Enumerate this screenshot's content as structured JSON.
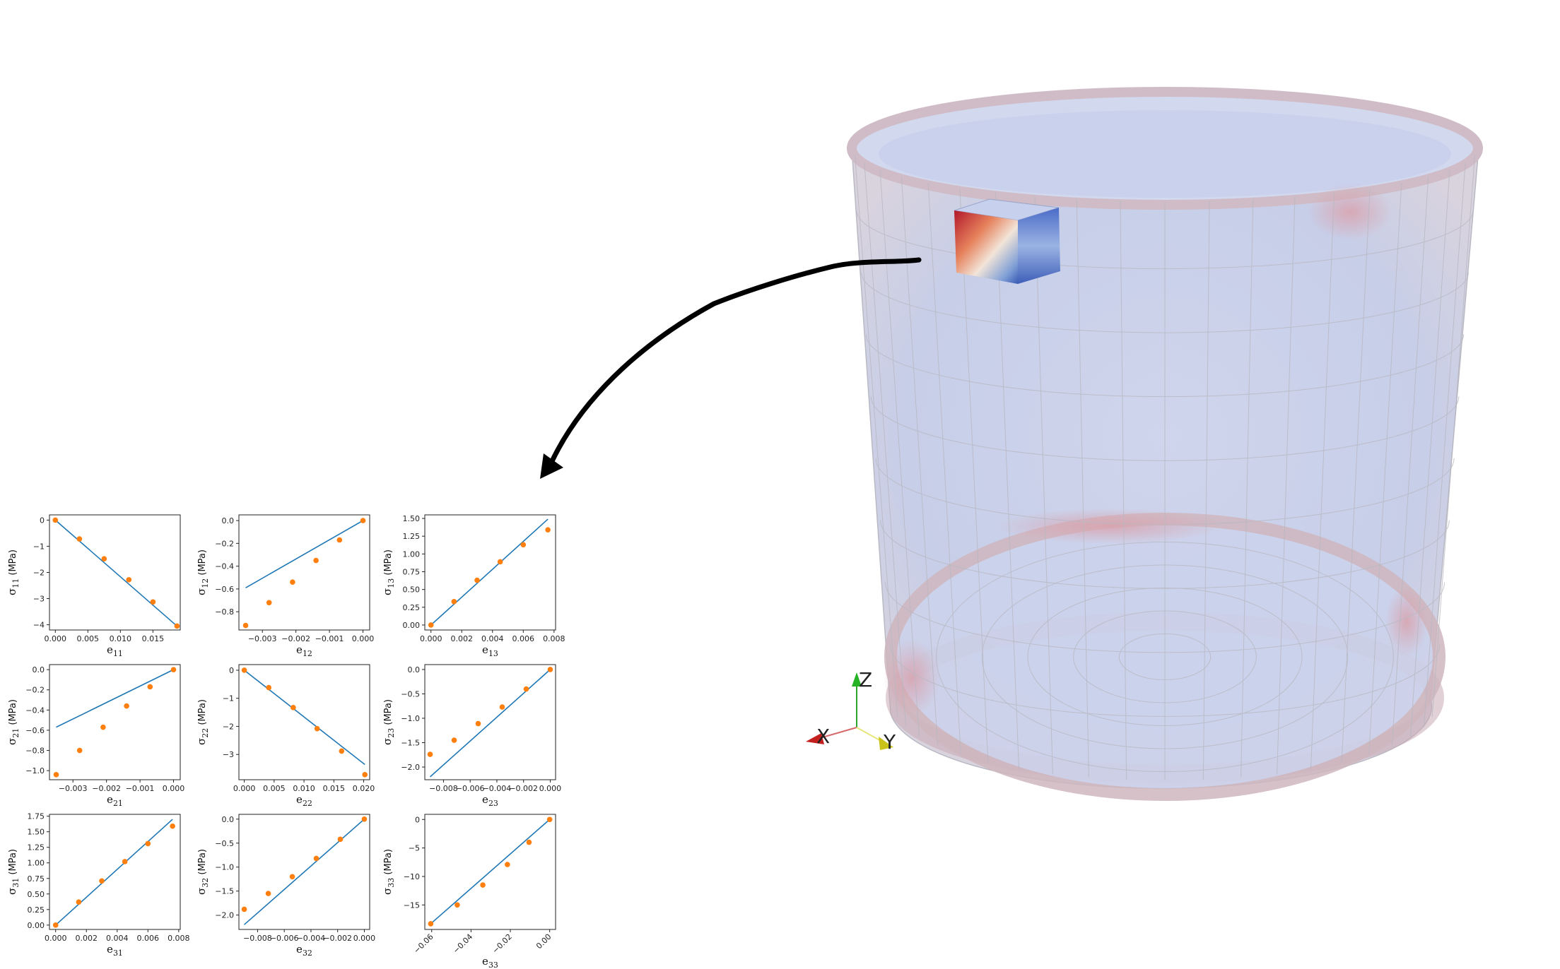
{
  "axes_triad": {
    "x_label": "X",
    "y_label": "Y",
    "z_label": "Z"
  },
  "chart_data": [
    {
      "id": "s11",
      "type": "scatter",
      "xlabel": "e",
      "xsub": "11",
      "ylabel": "σ",
      "ysub": "11",
      "yunit": "(MPa)",
      "xlim": [
        -0.0009,
        0.0192
      ],
      "ylim": [
        -4.2,
        0.2
      ],
      "xticks": [
        0,
        0.005,
        0.01,
        0.015
      ],
      "xtick_labels": [
        "0.000",
        "0.005",
        "0.010",
        "0.015"
      ],
      "yticks": [
        0,
        -1,
        -2,
        -3,
        -4
      ],
      "ytick_labels": [
        "0",
        "−1",
        "−2",
        "−3",
        "−4"
      ],
      "points_x": [
        0,
        0.0037,
        0.0075,
        0.0113,
        0.015,
        0.0187
      ],
      "points_y": [
        0,
        -0.72,
        -1.48,
        -2.28,
        -3.13,
        -4.05
      ],
      "fit_line": [
        [
          0,
          0
        ],
        [
          0.0187,
          -4.05
        ]
      ]
    },
    {
      "id": "s12",
      "type": "scatter",
      "xlabel": "e",
      "xsub": "12",
      "ylabel": "σ",
      "ysub": "12",
      "yunit": "(MPa)",
      "xlim": [
        -0.0037,
        0.0002
      ],
      "ylim": [
        -0.96,
        0.05
      ],
      "xticks": [
        -0.003,
        -0.002,
        -0.001,
        0
      ],
      "xtick_labels": [
        "−0.003",
        "−0.002",
        "−0.001",
        "0.000"
      ],
      "yticks": [
        0,
        -0.2,
        -0.4,
        -0.6,
        -0.8
      ],
      "ytick_labels": [
        "0.0",
        "−0.2",
        "−0.4",
        "−0.6",
        "−0.8"
      ],
      "points_x": [
        -0.0035,
        -0.0028,
        -0.0021,
        -0.0014,
        -0.0007,
        0
      ],
      "points_y": [
        -0.92,
        -0.72,
        -0.54,
        -0.35,
        -0.17,
        0
      ],
      "fit_line": [
        [
          -0.0035,
          -0.59
        ],
        [
          0,
          0
        ]
      ]
    },
    {
      "id": "s13",
      "type": "scatter",
      "xlabel": "e",
      "xsub": "13",
      "ylabel": "σ",
      "ysub": "13",
      "yunit": "(MPa)",
      "xlim": [
        -0.0004,
        0.0081
      ],
      "ylim": [
        -0.07,
        1.55
      ],
      "xticks": [
        0,
        0.002,
        0.004,
        0.006,
        0.008
      ],
      "xtick_labels": [
        "0.000",
        "0.002",
        "0.004",
        "0.006",
        "0.008"
      ],
      "yticks": [
        0,
        0.25,
        0.5,
        0.75,
        1,
        1.25,
        1.5
      ],
      "ytick_labels": [
        "0.00",
        "0.25",
        "0.50",
        "0.75",
        "1.00",
        "1.25",
        "1.50"
      ],
      "points_x": [
        0,
        0.0015,
        0.003,
        0.0045,
        0.006,
        0.0076
      ],
      "points_y": [
        0,
        0.33,
        0.63,
        0.89,
        1.13,
        1.34
      ],
      "fit_line": [
        [
          0,
          0
        ],
        [
          0.0076,
          1.49
        ]
      ]
    },
    {
      "id": "s21",
      "type": "scatter",
      "xlabel": "e",
      "xsub": "21",
      "ylabel": "σ",
      "ysub": "21",
      "yunit": "(MPa)",
      "xlim": [
        -0.0037,
        0.0002
      ],
      "ylim": [
        -1.09,
        0.05
      ],
      "xticks": [
        -0.003,
        -0.002,
        -0.001,
        0
      ],
      "xtick_labels": [
        "−0.003",
        "−0.002",
        "−0.001",
        "0.000"
      ],
      "yticks": [
        0,
        -0.2,
        -0.4,
        -0.6,
        -0.8,
        -1.0
      ],
      "ytick_labels": [
        "0.0",
        "−0.2",
        "−0.4",
        "−0.6",
        "−0.8",
        "−1.0"
      ],
      "points_x": [
        -0.0035,
        -0.0028,
        -0.0021,
        -0.0014,
        -0.0007,
        0
      ],
      "points_y": [
        -1.04,
        -0.8,
        -0.57,
        -0.36,
        -0.17,
        0
      ],
      "fit_line": [
        [
          -0.0035,
          -0.57
        ],
        [
          0,
          0
        ]
      ]
    },
    {
      "id": "s22",
      "type": "scatter",
      "xlabel": "e",
      "xsub": "22",
      "ylabel": "σ",
      "ysub": "22",
      "yunit": "(MPa)",
      "xlim": [
        -0.0009,
        0.021
      ],
      "ylim": [
        -3.9,
        0.2
      ],
      "xticks": [
        0,
        0.005,
        0.01,
        0.015,
        0.02
      ],
      "xtick_labels": [
        "0.000",
        "0.005",
        "0.010",
        "0.015",
        "0.020"
      ],
      "yticks": [
        0,
        -1,
        -2,
        -3
      ],
      "ytick_labels": [
        "0",
        "−1",
        "−2",
        "−3"
      ],
      "points_x": [
        0,
        0.0041,
        0.0082,
        0.0122,
        0.0163,
        0.0202
      ],
      "points_y": [
        0,
        -0.62,
        -1.33,
        -2.08,
        -2.88,
        -3.72
      ],
      "fit_line": [
        [
          0,
          0
        ],
        [
          0.0202,
          -3.36
        ]
      ]
    },
    {
      "id": "s23",
      "type": "scatter",
      "xlabel": "e",
      "xsub": "23",
      "ylabel": "σ",
      "ysub": "23",
      "yunit": "(MPa)",
      "xlim": [
        -0.0094,
        0.0004
      ],
      "ylim": [
        -2.26,
        0.1
      ],
      "xticks": [
        -0.008,
        -0.006,
        -0.004,
        -0.002,
        0
      ],
      "xtick_labels": [
        "−0.008",
        "−0.006",
        "−0.004",
        "−0.002",
        "0.000"
      ],
      "yticks": [
        0,
        -0.5,
        -1,
        -1.5,
        -2
      ],
      "ytick_labels": [
        "0.0",
        "−0.5",
        "−1.0",
        "−1.5",
        "−2.0"
      ],
      "points_x": [
        -0.009,
        -0.0072,
        -0.0054,
        -0.0036,
        -0.0018,
        0
      ],
      "points_y": [
        -1.74,
        -1.45,
        -1.11,
        -0.77,
        -0.4,
        0
      ],
      "fit_line": [
        [
          -0.009,
          -2.2
        ],
        [
          0,
          0
        ]
      ]
    },
    {
      "id": "s31",
      "type": "scatter",
      "xlabel": "e",
      "xsub": "31",
      "ylabel": "σ",
      "ysub": "31",
      "yunit": "(MPa)",
      "xlim": [
        -0.0004,
        0.0081
      ],
      "ylim": [
        -0.07,
        1.78
      ],
      "xticks": [
        0,
        0.002,
        0.004,
        0.006,
        0.008
      ],
      "xtick_labels": [
        "0.000",
        "0.002",
        "0.004",
        "0.006",
        "0.008"
      ],
      "yticks": [
        0,
        0.25,
        0.5,
        0.75,
        1,
        1.25,
        1.5,
        1.75
      ],
      "ytick_labels": [
        "0.00",
        "0.25",
        "0.50",
        "0.75",
        "1.00",
        "1.25",
        "1.50",
        "1.75"
      ],
      "points_x": [
        0,
        0.0015,
        0.003,
        0.0045,
        0.006,
        0.0076
      ],
      "points_y": [
        0,
        0.37,
        0.71,
        1.02,
        1.31,
        1.59
      ],
      "fit_line": [
        [
          0,
          0
        ],
        [
          0.0076,
          1.7
        ]
      ]
    },
    {
      "id": "s32",
      "type": "scatter",
      "xlabel": "e",
      "xsub": "32",
      "ylabel": "σ",
      "ysub": "32",
      "yunit": "(MPa)",
      "xlim": [
        -0.0094,
        0.0004
      ],
      "ylim": [
        -2.3,
        0.1
      ],
      "xticks": [
        -0.008,
        -0.006,
        -0.004,
        -0.002,
        0
      ],
      "xtick_labels": [
        "−0.008",
        "−0.006",
        "−0.004",
        "−0.002",
        "0.000"
      ],
      "yticks": [
        0,
        -0.5,
        -1,
        -1.5,
        -2
      ],
      "ytick_labels": [
        "0.0",
        "−0.5",
        "−1.0",
        "−1.5",
        "−2.0"
      ],
      "points_x": [
        -0.009,
        -0.0072,
        -0.0054,
        -0.0036,
        -0.0018,
        0
      ],
      "points_y": [
        -1.88,
        -1.55,
        -1.2,
        -0.82,
        -0.42,
        0
      ],
      "fit_line": [
        [
          -0.009,
          -2.2
        ],
        [
          0,
          0
        ]
      ]
    },
    {
      "id": "s33",
      "type": "scatter",
      "xlabel": "e",
      "xsub": "33",
      "ylabel": "σ",
      "ysub": "33",
      "yunit": "(MPa)",
      "xlim": [
        -0.0635,
        0.003
      ],
      "ylim": [
        -19.3,
        0.9
      ],
      "xticks": [
        -0.06,
        -0.04,
        -0.02,
        0
      ],
      "xtick_labels": [
        "−0.06",
        "−0.04",
        "−0.02",
        "0.00"
      ],
      "yticks": [
        0,
        -5,
        -10,
        -15
      ],
      "ytick_labels": [
        "0",
        "−5",
        "−10",
        "−15"
      ],
      "points_x": [
        -0.0605,
        -0.047,
        -0.034,
        -0.0215,
        -0.0105,
        0
      ],
      "points_y": [
        -18.3,
        -15.0,
        -11.5,
        -7.9,
        -4.0,
        0
      ],
      "fit_line": [
        [
          -0.0605,
          -18.3
        ],
        [
          0,
          0
        ]
      ]
    }
  ]
}
